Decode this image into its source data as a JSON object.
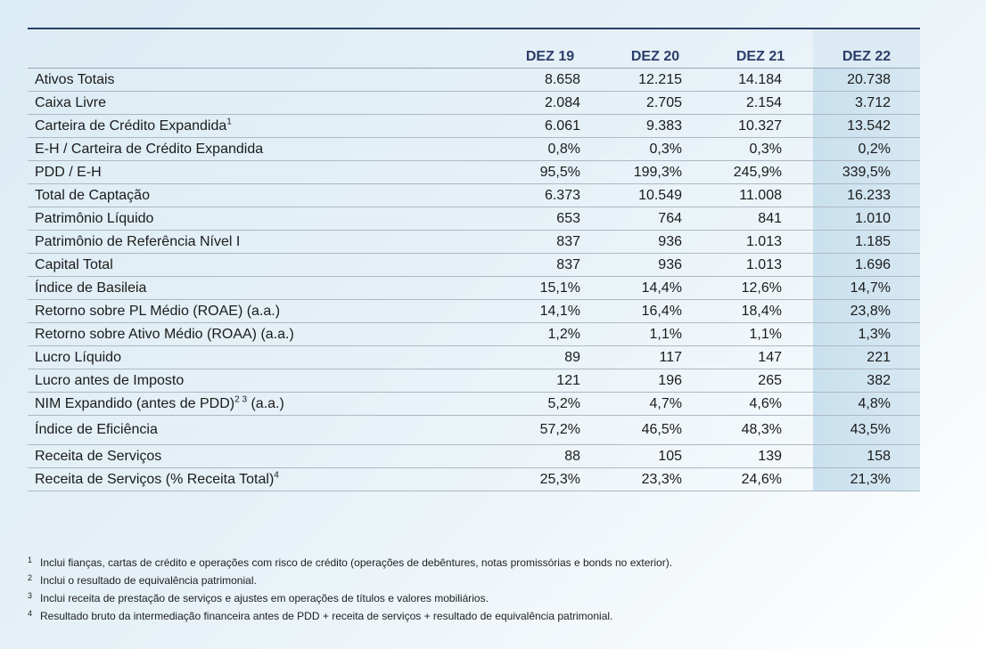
{
  "columns": [
    "DEZ 19",
    "DEZ 20",
    "DEZ 21",
    "DEZ 22"
  ],
  "rows": [
    {
      "label": "Ativos Totais",
      "sup": "",
      "values": [
        "8.658",
        "12.215",
        "14.184",
        "20.738"
      ]
    },
    {
      "label": "Caixa Livre",
      "sup": "",
      "values": [
        "2.084",
        "2.705",
        "2.154",
        "3.712"
      ]
    },
    {
      "label": "Carteira de Crédito Expandida",
      "sup": "1",
      "values": [
        "6.061",
        "9.383",
        "10.327",
        "13.542"
      ]
    },
    {
      "label": "E-H / Carteira de Crédito Expandida",
      "sup": "",
      "values": [
        "0,8%",
        "0,3%",
        "0,3%",
        "0,2%"
      ]
    },
    {
      "label": "PDD / E-H",
      "sup": "",
      "values": [
        "95,5%",
        "199,3%",
        "245,9%",
        "339,5%"
      ]
    },
    {
      "label": "Total de Captação",
      "sup": "",
      "values": [
        "6.373",
        "10.549",
        "11.008",
        "16.233"
      ]
    },
    {
      "label": "Patrimônio Líquido",
      "sup": "",
      "values": [
        "653",
        "764",
        "841",
        "1.010"
      ]
    },
    {
      "label": "Patrimônio de Referência Nível I",
      "sup": "",
      "values": [
        "837",
        "936",
        "1.013",
        "1.185"
      ]
    },
    {
      "label": "Capital Total",
      "sup": "",
      "values": [
        "837",
        "936",
        "1.013",
        "1.696"
      ]
    },
    {
      "label": "Índice de Basileia",
      "sup": "",
      "values": [
        "15,1%",
        "14,4%",
        "12,6%",
        "14,7%"
      ]
    },
    {
      "label": "Retorno sobre PL Médio (ROAE) (a.a.)",
      "sup": "",
      "values": [
        "14,1%",
        "16,4%",
        "18,4%",
        "23,8%"
      ]
    },
    {
      "label": "Retorno sobre Ativo Médio (ROAA) (a.a.)",
      "sup": "",
      "values": [
        "1,2%",
        "1,1%",
        "1,1%",
        "1,3%"
      ]
    },
    {
      "label": "Lucro Líquido",
      "sup": "",
      "values": [
        "89",
        "117",
        "147",
        "221"
      ]
    },
    {
      "label": "Lucro antes de Imposto",
      "sup": "",
      "values": [
        "121",
        "196",
        "265",
        "382"
      ]
    },
    {
      "label": "NIM Expandido (antes de PDD)",
      "sup": "2 3",
      "suffix": " (a.a.)",
      "values": [
        "5,2%",
        "4,7%",
        "4,6%",
        "4,8%"
      ]
    },
    {
      "label": "Índice de Eficiência",
      "sup": "",
      "values": [
        "57,2%",
        "46,5%",
        "48,3%",
        "43,5%"
      ],
      "tall": true
    },
    {
      "label": "Receita de Serviços",
      "sup": "",
      "values": [
        "88",
        "105",
        "139",
        "158"
      ]
    },
    {
      "label": "Receita de Serviços (% Receita Total)",
      "sup": "4",
      "values": [
        "25,3%",
        "23,3%",
        "24,6%",
        "21,3%"
      ]
    }
  ],
  "footnotes": [
    {
      "mark": "1",
      "text": "Inclui fianças, cartas de crédito e operações com risco de crédito (operações de debêntures, notas promissórias e bonds no exterior)."
    },
    {
      "mark": "2",
      "text": "Inclui o resultado de equivalência patrimonial."
    },
    {
      "mark": "3",
      "text": "Inclui receita de prestação de serviços e ajustes em operações de títulos e valores mobiliários."
    },
    {
      "mark": "4",
      "text": "Resultado bruto da intermediação financeira antes de PDD + receita de serviços + resultado de equivalência patrimonial."
    }
  ],
  "colors": {
    "header_text": "#2b3d6a",
    "highlight_column": "#c9e0ee",
    "rule": "#2a3f66"
  }
}
